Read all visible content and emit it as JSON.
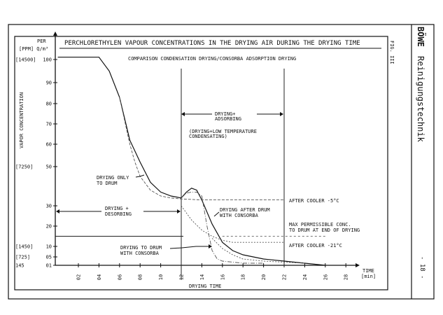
{
  "chart_data": {
    "type": "line",
    "title": "PERCHLORETHYLEN VAPOUR CONCENTRATIONS IN THE DRYING AIR DURING THE DRYING TIME",
    "subtitle": "COMPARISON CONDENSATION DRYING/CONSORBA ADSORPTION DRYING",
    "figure_label": "FIG. III",
    "ylabel": "VAPOR CONCENTRATION",
    "yunit_top": "PER",
    "yunit_bottom": "[PPM] Q/m³",
    "xlabel": "DRYING TIME",
    "xunit_top": "TIME",
    "xunit_bottom": "[min]",
    "xlim": [
      0,
      29
    ],
    "ylim": [
      1,
      100
    ],
    "y_scale": "non-linear (compressed below 30)",
    "grid": false,
    "x_ticks": [
      "02",
      "04",
      "06",
      "08",
      "10",
      "12",
      "14",
      "16",
      "18",
      "20",
      "22",
      "24",
      "26",
      "28"
    ],
    "y_ticks": [
      "100",
      "90",
      "80",
      "70",
      "60",
      "50",
      "30",
      "20",
      "10",
      "05",
      "01"
    ],
    "y_ppm_labels": [
      {
        "value": 100,
        "label": "[14500]"
      },
      {
        "value": 50,
        "label": "[7250]"
      },
      {
        "value": 10,
        "label": "[1450]"
      },
      {
        "value": 5,
        "label": "[725]"
      },
      {
        "value": 1,
        "label": "145"
      }
    ],
    "series": [
      {
        "style": "solid",
        "x": [
          0,
          3,
          4,
          5,
          6,
          7,
          8,
          9,
          10,
          11,
          12,
          12.5,
          13,
          13.5,
          14,
          15,
          16,
          17,
          18,
          20,
          22,
          24,
          26
        ],
        "y": [
          101,
          101,
          101,
          95,
          83,
          62,
          52,
          42,
          37,
          35,
          34,
          37,
          39,
          38,
          33,
          21,
          12,
          8,
          6,
          4,
          3,
          2,
          1
        ]
      },
      {
        "style": "dashed",
        "x": [
          6,
          7,
          7.5,
          8,
          9,
          10,
          11,
          12,
          14,
          16,
          18,
          20,
          22
        ],
        "y": [
          83,
          60,
          52,
          45,
          38,
          35,
          34,
          33.5,
          33,
          33,
          33,
          33,
          33
        ]
      },
      {
        "style": "dash-dot",
        "x": [
          12,
          12.5,
          13,
          13.5,
          14,
          14.5,
          15,
          15.5,
          16,
          18,
          20
        ],
        "y": [
          34,
          36.5,
          37,
          37,
          35,
          20,
          8,
          4,
          3,
          2,
          2
        ]
      },
      {
        "style": "dotted",
        "x": [
          12,
          13,
          14,
          15,
          16,
          17,
          18,
          20,
          22
        ],
        "y": [
          30,
          23,
          18,
          15,
          13,
          12,
          12,
          12,
          12
        ]
      },
      {
        "style": "dotted",
        "x": [
          15,
          16,
          17,
          18,
          20,
          22,
          24
        ],
        "y": [
          14,
          9,
          6,
          4,
          3,
          2.5,
          2
        ]
      }
    ],
    "reference_lines": [
      {
        "type": "vertical",
        "x": 12
      },
      {
        "type": "vertical",
        "x": 22
      },
      {
        "type": "horizontal",
        "y": 15,
        "from": 0,
        "to": 12,
        "style": "solid"
      },
      {
        "type": "horizontal",
        "y": 15,
        "from": 16,
        "to": 26,
        "style": "dotted"
      }
    ],
    "annotations": {
      "drying_adsorbing": [
        "DRYING+",
        "ADSORBING"
      ],
      "low_temp": [
        "(DRYING+LOW TEMPERATURE",
        "CONDENSATING)"
      ],
      "only_drum": [
        "DRYING ONLY",
        "TO DRUM"
      ],
      "desorbing": [
        "DRYING +",
        "DESORBING"
      ],
      "after_drum": [
        "DRYING AFTER DRUM",
        "WITH CONSORBA"
      ],
      "cooler5": "AFTER COOLER -5°C",
      "maxperm": [
        "MAX PERMISSIBLE CONC.",
        "TO DRUM AT END OF DRYING"
      ],
      "cooler21": "AFTER COOLER -21°C",
      "to_drum": [
        "DRYING TO DRUM",
        "WITH CONSORBA"
      ]
    }
  },
  "sidebar": {
    "brand": "BÖWE",
    "brand_sub": "Reinigungstechnik",
    "page_number": "- 18 -"
  }
}
